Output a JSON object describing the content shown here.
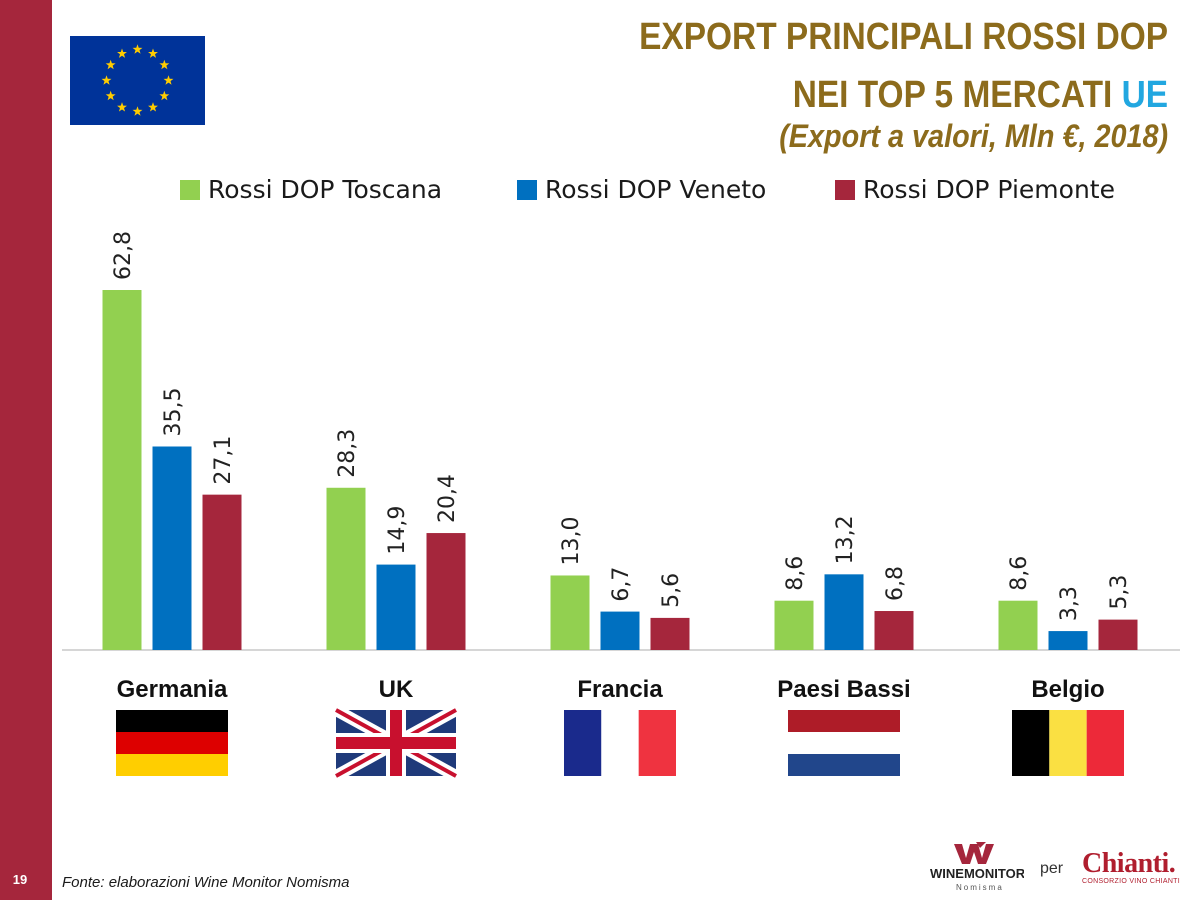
{
  "page": {
    "number": "19"
  },
  "header": {
    "title_line1": "EXPORT PRINCIPALI ROSSI DOP",
    "title_line2_prefix": "NEI TOP 5 MERCATI ",
    "title_line2_accent": "UE",
    "subtitle": "(Export a valori, Mln €, 2018)"
  },
  "icons": {
    "eu_flag": "eu-flag-icon"
  },
  "footer": {
    "source": "Fonte: elaborazioni Wine Monitor Nomisma",
    "per": "per",
    "logo_winemonitor_main": "WINEMONITOR",
    "logo_winemonitor_sub": "Nomisma",
    "logo_chianti": "Chianti",
    "logo_chianti_sub": "CONSORZIO VINO CHIANTI"
  },
  "chart_data": {
    "type": "bar",
    "title": "",
    "categories": [
      "Germania",
      "UK",
      "Francia",
      "Paesi Bassi",
      "Belgio"
    ],
    "category_flags": [
      "germany-flag-icon",
      "uk-flag-icon",
      "france-flag-icon",
      "netherlands-flag-icon",
      "belgium-flag-icon"
    ],
    "series": [
      {
        "name": "Rossi DOP Toscana",
        "color": "#92d050",
        "values": [
          62.8,
          28.3,
          13.0,
          8.6,
          8.6
        ],
        "labels": [
          "62,8",
          "28,3",
          "13,0",
          "8,6",
          "8,6"
        ]
      },
      {
        "name": "Rossi DOP Veneto",
        "color": "#0070c0",
        "values": [
          35.5,
          14.9,
          6.7,
          13.2,
          3.3
        ],
        "labels": [
          "35,5",
          "14,9",
          "6,7",
          "13,2",
          "3,3"
        ]
      },
      {
        "name": "Rossi DOP Piemonte",
        "color": "#a5263c",
        "values": [
          27.1,
          20.4,
          5.6,
          6.8,
          5.3
        ],
        "labels": [
          "27,1",
          "20,4",
          "5,6",
          "6,8",
          "5,3"
        ]
      }
    ],
    "ylim": [
      0,
      63
    ],
    "legend_position": "top",
    "grid": false
  }
}
